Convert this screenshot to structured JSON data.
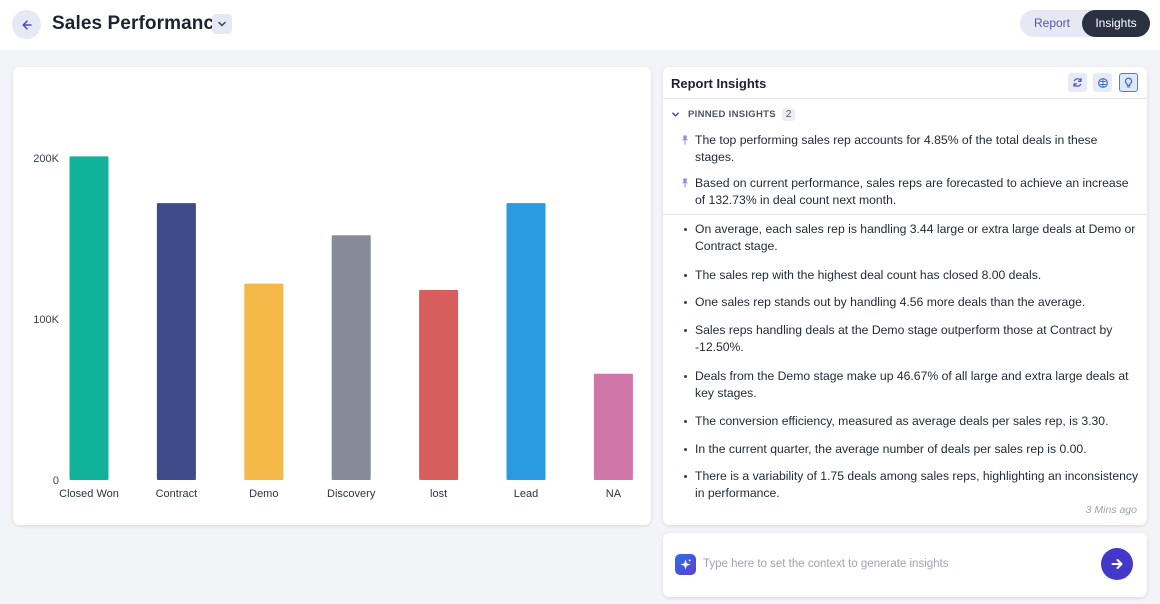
{
  "header": {
    "title": "Sales Performance",
    "toggle": {
      "report_label": "Report",
      "insights_label": "Insights",
      "active": "Insights"
    }
  },
  "chart_data": {
    "type": "bar",
    "categories": [
      "Closed Won",
      "Contract",
      "Demo",
      "Discovery",
      "lost",
      "Lead",
      "NA"
    ],
    "values": [
      201000,
      172000,
      122000,
      152000,
      118000,
      172000,
      66000
    ],
    "colors": [
      "#10b39a",
      "#3d4b8a",
      "#f5b94a",
      "#868a99",
      "#d85d5d",
      "#2a9be0",
      "#cf77a8"
    ],
    "ylim": [
      0,
      200000
    ],
    "yticks": [
      {
        "value": 0,
        "label": "0"
      },
      {
        "value": 100000,
        "label": "100K"
      },
      {
        "value": 200000,
        "label": "200K"
      }
    ],
    "title": "",
    "xlabel": "",
    "ylabel": "",
    "grid": false
  },
  "insights": {
    "title": "Report Insights",
    "pinned_label": "PINNED INSIGHTS",
    "pinned_count": "2",
    "pinned": [
      "The top performing sales rep accounts for 4.85% of the total deals in these stages.",
      "Based on current performance, sales reps are forecasted to achieve an increase of 132.73% in deal count next month."
    ],
    "items": [
      "On average, each sales rep is handling 3.44 large or extra large deals at Demo or Contract stage.",
      "The sales rep with the highest deal count has closed 8.00 deals.",
      "One sales rep stands out by handling 4.56 more deals than the average.",
      "Sales reps handling deals at the Demo stage outperform those at Contract by -12.50%.",
      "Deals from the Demo stage make up 46.67% of all large and extra large deals at key stages.",
      "The conversion efficiency, measured as average deals per sales rep, is 3.30.",
      "In the current quarter, the average number of deals per sales rep is 0.00.",
      "There is a variability of 1.75 deals among sales reps, highlighting an inconsistency in performance."
    ],
    "time_ago": "3 Mins ago"
  },
  "prompt": {
    "placeholder": "Type here to set the context to generate insights",
    "value": ""
  },
  "icons": {
    "back": "arrow-left-icon",
    "title_dropdown": "chevron-down-icon",
    "refresh": "refresh-icon",
    "brain": "brain-icon",
    "bulb": "lightbulb-icon",
    "pin": "pin-icon",
    "sparkle": "sparkle-icon",
    "send": "arrow-right-icon"
  }
}
